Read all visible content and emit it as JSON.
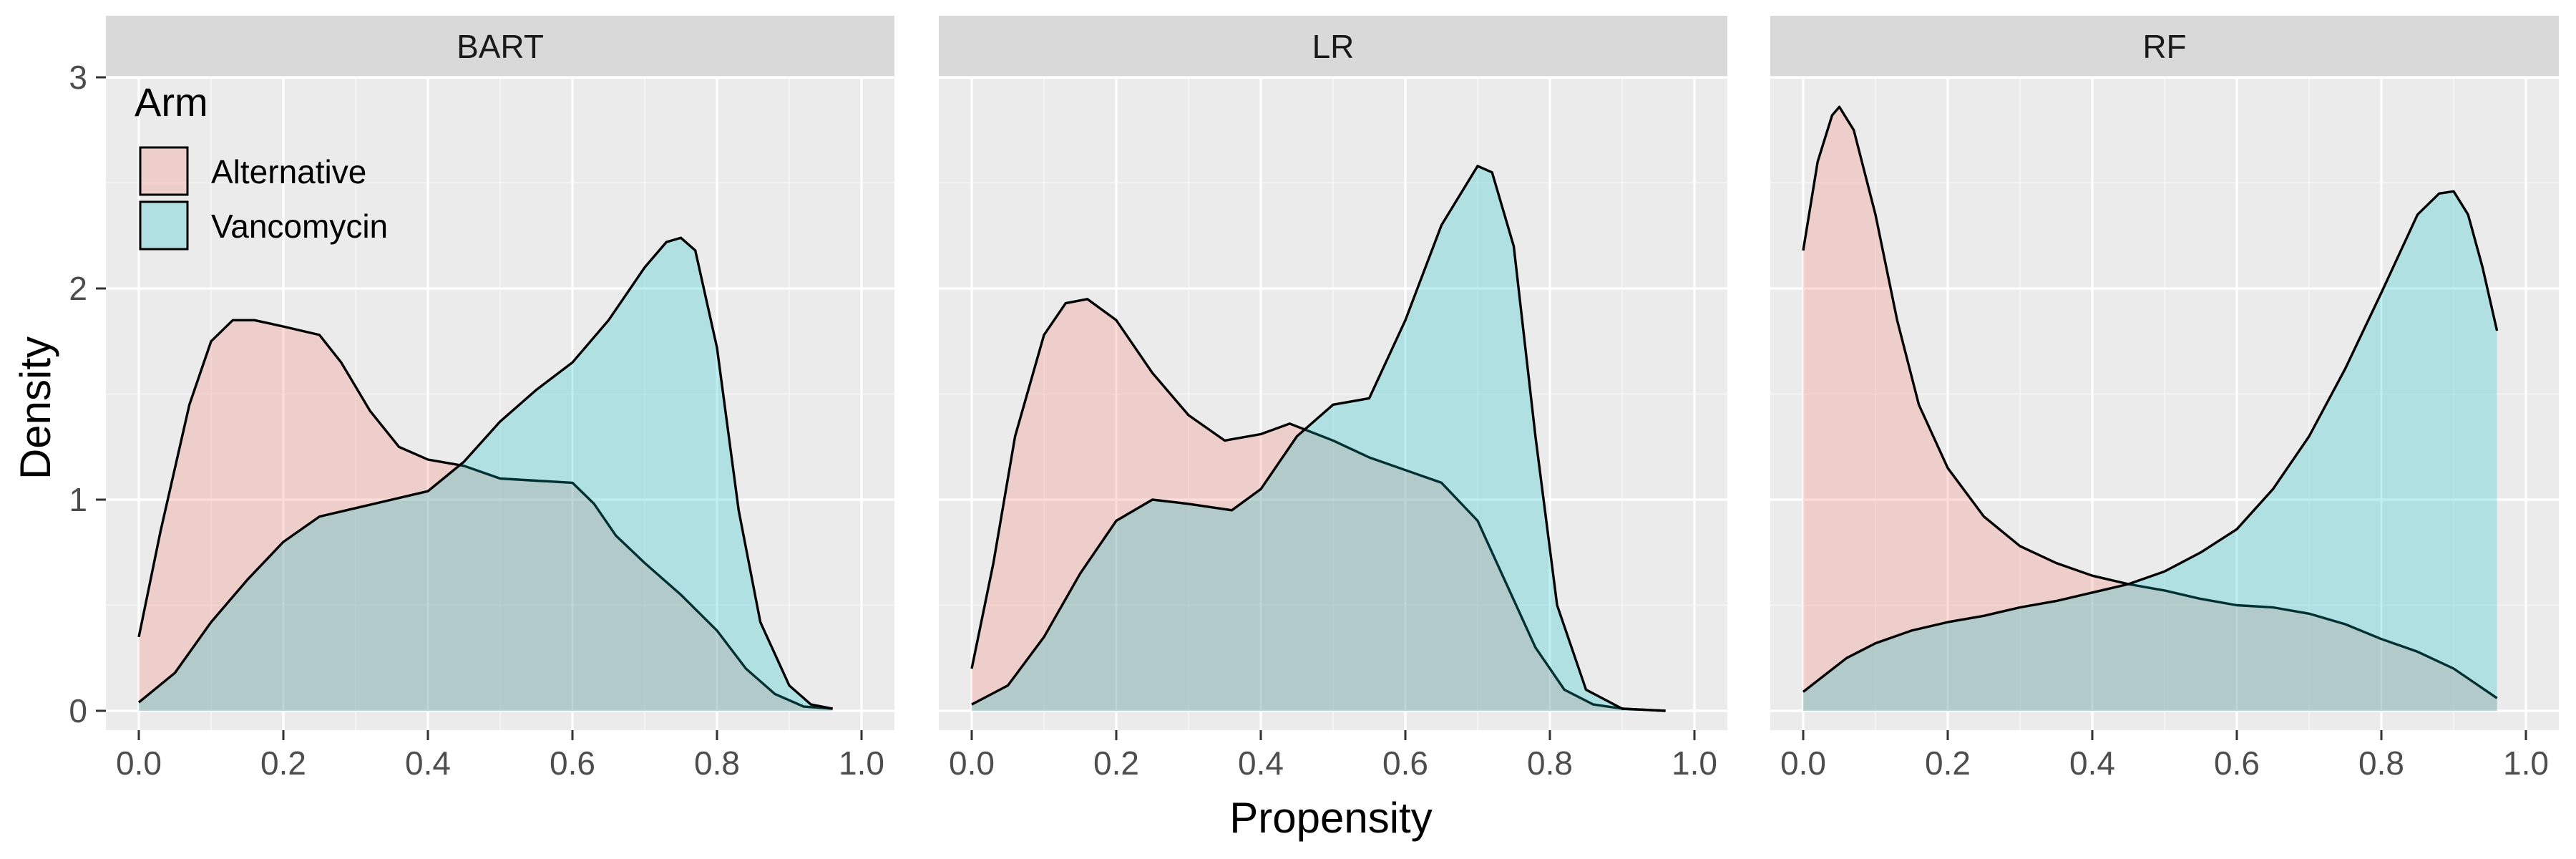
{
  "chart_data": {
    "type": "area",
    "subtype": "faceted density plot",
    "xlabel": "Propensity",
    "ylabel": "Density",
    "xlim": [
      0,
      1
    ],
    "ylim": [
      0,
      3
    ],
    "x_ticks": [
      "0.0",
      "0.2",
      "0.4",
      "0.6",
      "0.8",
      "1.0"
    ],
    "y_ticks": [
      "0",
      "1",
      "2",
      "3"
    ],
    "grid": true,
    "legend": {
      "title": "Arm",
      "position": "top-left inside first panel",
      "entries": [
        {
          "label": "Alternative",
          "color": "#F8766D"
        },
        {
          "label": "Vancomycin",
          "color": "#00BFC4"
        }
      ]
    },
    "colors": {
      "panel_bg": "#EBEBEB",
      "strip_bg": "#D9D9D9",
      "grid": "#FFFFFF",
      "fill_alpha": 0.25
    },
    "panels": [
      {
        "label": "BART",
        "series": [
          {
            "name": "Alternative",
            "x": [
              0.0,
              0.03,
              0.07,
              0.1,
              0.13,
              0.16,
              0.2,
              0.25,
              0.28,
              0.32,
              0.36,
              0.4,
              0.45,
              0.5,
              0.55,
              0.6,
              0.63,
              0.66,
              0.7,
              0.75,
              0.8,
              0.84,
              0.88,
              0.92,
              0.96
            ],
            "y": [
              0.35,
              0.85,
              1.45,
              1.75,
              1.85,
              1.85,
              1.82,
              1.78,
              1.65,
              1.42,
              1.25,
              1.19,
              1.16,
              1.1,
              1.09,
              1.08,
              0.98,
              0.83,
              0.7,
              0.55,
              0.38,
              0.2,
              0.08,
              0.02,
              0.01
            ]
          },
          {
            "name": "Vancomycin",
            "x": [
              0.0,
              0.05,
              0.1,
              0.15,
              0.2,
              0.25,
              0.3,
              0.35,
              0.4,
              0.45,
              0.5,
              0.55,
              0.6,
              0.65,
              0.7,
              0.73,
              0.75,
              0.77,
              0.8,
              0.83,
              0.86,
              0.9,
              0.93,
              0.96
            ],
            "y": [
              0.04,
              0.18,
              0.42,
              0.62,
              0.8,
              0.92,
              0.96,
              1.0,
              1.04,
              1.18,
              1.37,
              1.52,
              1.65,
              1.85,
              2.1,
              2.22,
              2.24,
              2.18,
              1.72,
              0.95,
              0.42,
              0.12,
              0.03,
              0.01
            ]
          }
        ]
      },
      {
        "label": "LR",
        "series": [
          {
            "name": "Alternative",
            "x": [
              0.0,
              0.03,
              0.06,
              0.1,
              0.13,
              0.16,
              0.2,
              0.25,
              0.3,
              0.35,
              0.4,
              0.44,
              0.5,
              0.55,
              0.6,
              0.65,
              0.7,
              0.74,
              0.78,
              0.82,
              0.86,
              0.9,
              0.96
            ],
            "y": [
              0.2,
              0.7,
              1.3,
              1.78,
              1.93,
              1.95,
              1.85,
              1.6,
              1.4,
              1.28,
              1.31,
              1.36,
              1.28,
              1.2,
              1.14,
              1.08,
              0.9,
              0.6,
              0.3,
              0.1,
              0.03,
              0.01,
              0.0
            ]
          },
          {
            "name": "Vancomycin",
            "x": [
              0.0,
              0.05,
              0.1,
              0.15,
              0.2,
              0.25,
              0.3,
              0.36,
              0.4,
              0.45,
              0.5,
              0.55,
              0.6,
              0.65,
              0.7,
              0.72,
              0.75,
              0.78,
              0.81,
              0.85,
              0.9,
              0.96
            ],
            "y": [
              0.03,
              0.12,
              0.35,
              0.65,
              0.9,
              1.0,
              0.98,
              0.95,
              1.05,
              1.3,
              1.45,
              1.48,
              1.85,
              2.3,
              2.58,
              2.55,
              2.2,
              1.3,
              0.5,
              0.1,
              0.01,
              0.0
            ]
          }
        ]
      },
      {
        "label": "RF",
        "series": [
          {
            "name": "Alternative",
            "x": [
              0.0,
              0.02,
              0.04,
              0.05,
              0.07,
              0.1,
              0.13,
              0.16,
              0.2,
              0.25,
              0.3,
              0.35,
              0.4,
              0.45,
              0.5,
              0.55,
              0.6,
              0.65,
              0.7,
              0.75,
              0.8,
              0.85,
              0.9,
              0.96
            ],
            "y": [
              2.18,
              2.6,
              2.82,
              2.86,
              2.75,
              2.35,
              1.85,
              1.45,
              1.15,
              0.92,
              0.78,
              0.7,
              0.64,
              0.6,
              0.57,
              0.53,
              0.5,
              0.49,
              0.46,
              0.41,
              0.34,
              0.28,
              0.2,
              0.06
            ]
          },
          {
            "name": "Vancomycin",
            "x": [
              0.0,
              0.03,
              0.06,
              0.1,
              0.15,
              0.2,
              0.25,
              0.3,
              0.35,
              0.4,
              0.45,
              0.5,
              0.55,
              0.6,
              0.65,
              0.7,
              0.75,
              0.8,
              0.85,
              0.88,
              0.9,
              0.92,
              0.94,
              0.96
            ],
            "y": [
              0.09,
              0.17,
              0.25,
              0.32,
              0.38,
              0.42,
              0.45,
              0.49,
              0.52,
              0.56,
              0.6,
              0.66,
              0.75,
              0.86,
              1.05,
              1.3,
              1.62,
              1.98,
              2.35,
              2.45,
              2.46,
              2.35,
              2.1,
              1.8
            ]
          }
        ]
      }
    ]
  }
}
